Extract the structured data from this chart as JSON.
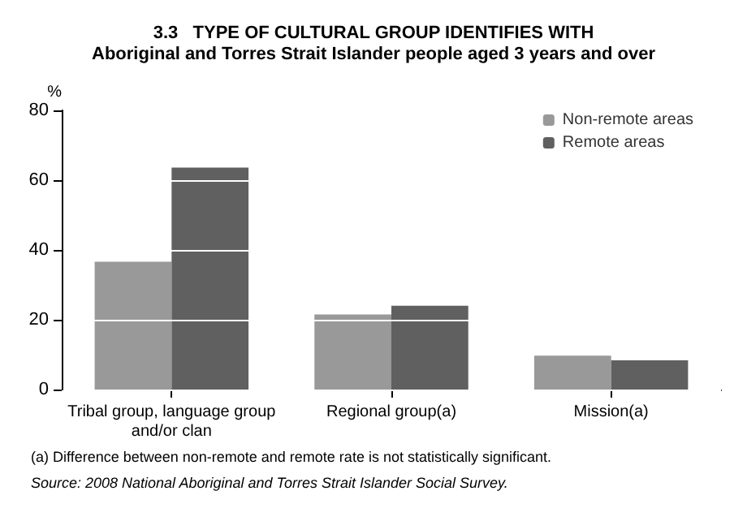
{
  "chart_data": {
    "type": "bar",
    "title": "3.3   TYPE OF CULTURAL GROUP IDENTIFIES WITH",
    "subtitle": "Aboriginal and Torres Strait Islander people aged 3 years and over",
    "ylabel": "%",
    "categories": [
      "Tribal group, language group\nand/or clan",
      "Regional group(a)",
      "Mission(a)"
    ],
    "series": [
      {
        "name": "Non-remote areas",
        "color": "#999999",
        "values": [
          36.6,
          21.5,
          9.7
        ]
      },
      {
        "name": "Remote areas",
        "color": "#606060",
        "values": [
          63.6,
          24.0,
          8.4
        ]
      }
    ],
    "ylim": [
      0,
      80
    ],
    "yticks": [
      0,
      20,
      40,
      60,
      80
    ],
    "grid": "y",
    "legend": "top right",
    "annotations": [
      "(a) Difference between non-remote and remote rate is not statistically significant.",
      "Source: 2008 National Aboriginal and Torres Strait Islander Social Survey."
    ]
  }
}
